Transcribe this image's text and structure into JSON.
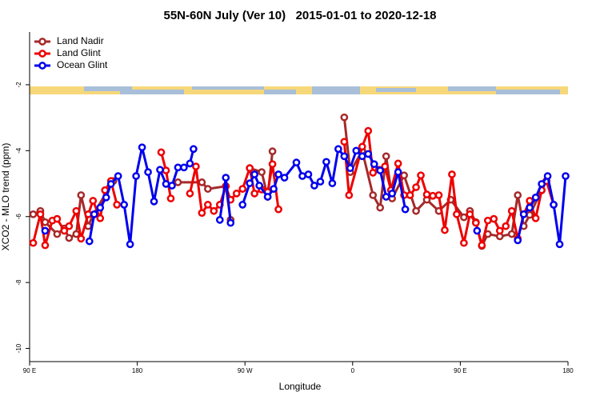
{
  "chart_data": {
    "type": "line",
    "title": "55N-60N July (Ver 10)   2015-01-01 to 2020-12-18",
    "x_label": "Longitude",
    "y_label": "XCO2 - MLO trend (ppm)",
    "xlim": [
      90,
      540
    ],
    "ylim": [
      -10.4,
      -0.4
    ],
    "xticks": [
      {
        "value": 90,
        "label": "90 E"
      },
      180,
      {
        "value": 270,
        "label": "90 W"
      },
      {
        "value": 360,
        "label": "0"
      },
      {
        "value": 450,
        "label": "90 E"
      },
      {
        "value": 540,
        "label": "180"
      }
    ],
    "yticks": [
      -2,
      -4,
      -6,
      -8,
      -10
    ],
    "legend": "top-left",
    "series": [
      {
        "name": "Land Nadir",
        "color": "#a52a2a",
        "x": [
          93,
          99,
          103,
          113,
          119,
          123,
          129,
          133,
          139,
          143,
          160,
          null,
          214,
          234,
          239,
          254,
          258,
          null,
          274,
          284,
          289,
          293,
          null,
          353,
          358,
          368,
          377,
          383,
          388,
          393,
          403,
          413,
          422,
          432,
          442,
          453,
          458,
          463,
          468,
          473,
          483,
          493,
          498,
          503,
          508,
          518,
          522
        ],
        "values": [
          -5.93,
          -5.83,
          -6.17,
          -6.53,
          -6.36,
          -6.65,
          -6.53,
          -5.35,
          -6.29,
          -5.95,
          -4.92,
          null,
          -4.96,
          -4.96,
          -5.16,
          -5.08,
          -6.1,
          null,
          -4.53,
          -4.65,
          -5.4,
          -4.02,
          null,
          -2.99,
          -4.65,
          -4.0,
          -5.35,
          -5.73,
          -4.17,
          -5.45,
          -4.75,
          -5.83,
          -5.49,
          -5.83,
          -5.49,
          -6.02,
          -5.83,
          -6.17,
          -6.89,
          -6.53,
          -6.6,
          -6.53,
          -5.35,
          -6.29,
          -5.95,
          -5.2,
          -4.92
        ]
      },
      {
        "name": "Land Glint",
        "color": "#ee0000",
        "x": [
          93,
          99,
          103,
          109,
          113,
          119,
          123,
          129,
          133,
          139,
          143,
          149,
          153,
          158,
          163,
          null,
          200,
          204,
          208,
          null,
          224,
          229,
          234,
          239,
          244,
          249,
          254,
          258,
          263,
          268,
          274,
          278,
          284,
          289,
          293,
          298,
          null,
          353,
          357,
          368,
          373,
          377,
          382,
          387,
          392,
          398,
          403,
          408,
          413,
          417,
          422,
          427,
          432,
          437,
          443,
          447,
          453,
          458,
          463,
          468,
          473,
          478,
          483,
          488,
          493,
          498,
          503,
          508,
          513,
          518,
          522,
          528
        ],
        "values": [
          -6.8,
          -5.93,
          -6.87,
          -6.12,
          -6.07,
          -6.43,
          -6.29,
          -5.83,
          -6.67,
          -5.93,
          -5.52,
          -6.05,
          -5.2,
          -4.92,
          -5.64,
          null,
          -4.05,
          -4.6,
          -5.45,
          null,
          -5.3,
          -4.48,
          -5.89,
          -5.64,
          -5.83,
          -5.64,
          -5.08,
          -5.49,
          -5.3,
          -5.16,
          -4.53,
          -5.3,
          -5.18,
          -5.25,
          -4.41,
          -5.78,
          null,
          -3.73,
          -5.35,
          -3.88,
          -3.4,
          -4.67,
          -4.58,
          -4.48,
          -5.2,
          -4.39,
          -5.35,
          -5.35,
          -5.11,
          -4.75,
          -5.33,
          -5.37,
          -5.35,
          -6.41,
          -4.72,
          -5.93,
          -6.8,
          -5.93,
          -6.19,
          -6.87,
          -6.12,
          -6.07,
          -6.43,
          -6.29,
          -5.83,
          -6.67,
          -5.93,
          -5.52,
          -6.05,
          -5.2,
          -4.92,
          -5.64
        ]
      },
      {
        "name": "Ocean Glint",
        "color": "#0000ee",
        "x": [
          103,
          null,
          140,
          144,
          149,
          154,
          158,
          164,
          169,
          174,
          179,
          184,
          189,
          194,
          199,
          204,
          209,
          214,
          219,
          224,
          227,
          null,
          249,
          254,
          258,
          null,
          268,
          274,
          278,
          282,
          289,
          294,
          298,
          303,
          313,
          318,
          323,
          328,
          333,
          338,
          343,
          348,
          353,
          358,
          363,
          368,
          373,
          378,
          383,
          388,
          393,
          398,
          404,
          null,
          464,
          null,
          498,
          503,
          508,
          513,
          518,
          523,
          528,
          533,
          538
        ],
        "values": [
          -6.43,
          null,
          -6.75,
          -5.93,
          -5.73,
          -5.42,
          -5.01,
          -4.77,
          -5.64,
          -6.84,
          -4.77,
          -3.9,
          -4.65,
          -5.54,
          -4.58,
          -5.01,
          -5.06,
          -4.51,
          -4.51,
          -4.39,
          -3.95,
          null,
          -6.1,
          -4.82,
          -6.19,
          null,
          -5.64,
          -4.99,
          -4.72,
          -5.06,
          -5.4,
          -5.16,
          -4.72,
          -4.82,
          -4.36,
          -4.77,
          -4.72,
          -5.06,
          -4.94,
          -4.34,
          -4.99,
          -3.95,
          -4.17,
          -4.53,
          -4.0,
          -4.17,
          -4.1,
          -4.41,
          -4.6,
          -5.4,
          -5.3,
          -4.65,
          -5.78,
          null,
          -6.43,
          null,
          -6.72,
          -5.93,
          -5.73,
          -5.42,
          -5.01,
          -4.77,
          -5.64,
          -6.84,
          -4.77
        ]
      }
    ]
  }
}
